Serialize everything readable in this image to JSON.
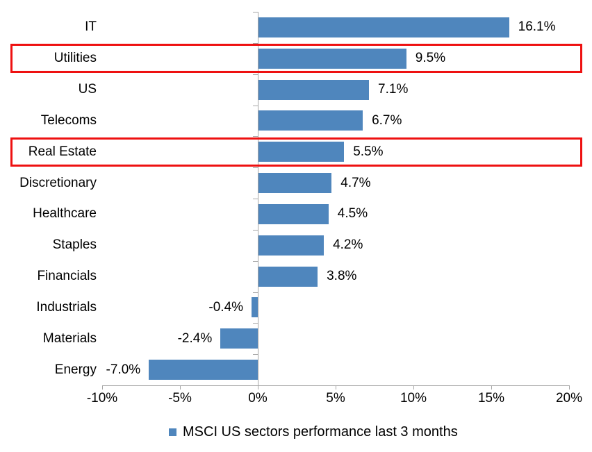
{
  "chart_data": {
    "type": "bar",
    "orientation": "horizontal",
    "title": "",
    "categories": [
      "IT",
      "Utilities",
      "US",
      "Telecoms",
      "Real Estate",
      "Discretionary",
      "Healthcare",
      "Staples",
      "Financials",
      "Industrials",
      "Materials",
      "Energy"
    ],
    "values": [
      16.1,
      9.5,
      7.1,
      6.7,
      5.5,
      4.7,
      4.5,
      4.2,
      3.8,
      -0.4,
      -2.4,
      -7.0
    ],
    "value_labels": [
      "16.1%",
      "9.5%",
      "7.1%",
      "6.7%",
      "5.5%",
      "4.7%",
      "4.5%",
      "4.2%",
      "3.8%",
      "-0.4%",
      "-2.4%",
      "-7.0%"
    ],
    "highlighted_categories": [
      "Utilities",
      "Real Estate"
    ],
    "xlim": [
      -10,
      20
    ],
    "x_tick_values": [
      -10,
      -5,
      0,
      5,
      10,
      15,
      20
    ],
    "x_tick_labels": [
      "-10%",
      "-5%",
      "0%",
      "5%",
      "10%",
      "15%",
      "20%"
    ],
    "grid": false,
    "legend": "MSCI US sectors performance last 3 months",
    "legend_position": "bottom",
    "colors": {
      "bar": "#4F86BD",
      "highlight_box": "#EE1111",
      "axis": "#A6A6A6",
      "text": "#000000"
    }
  }
}
